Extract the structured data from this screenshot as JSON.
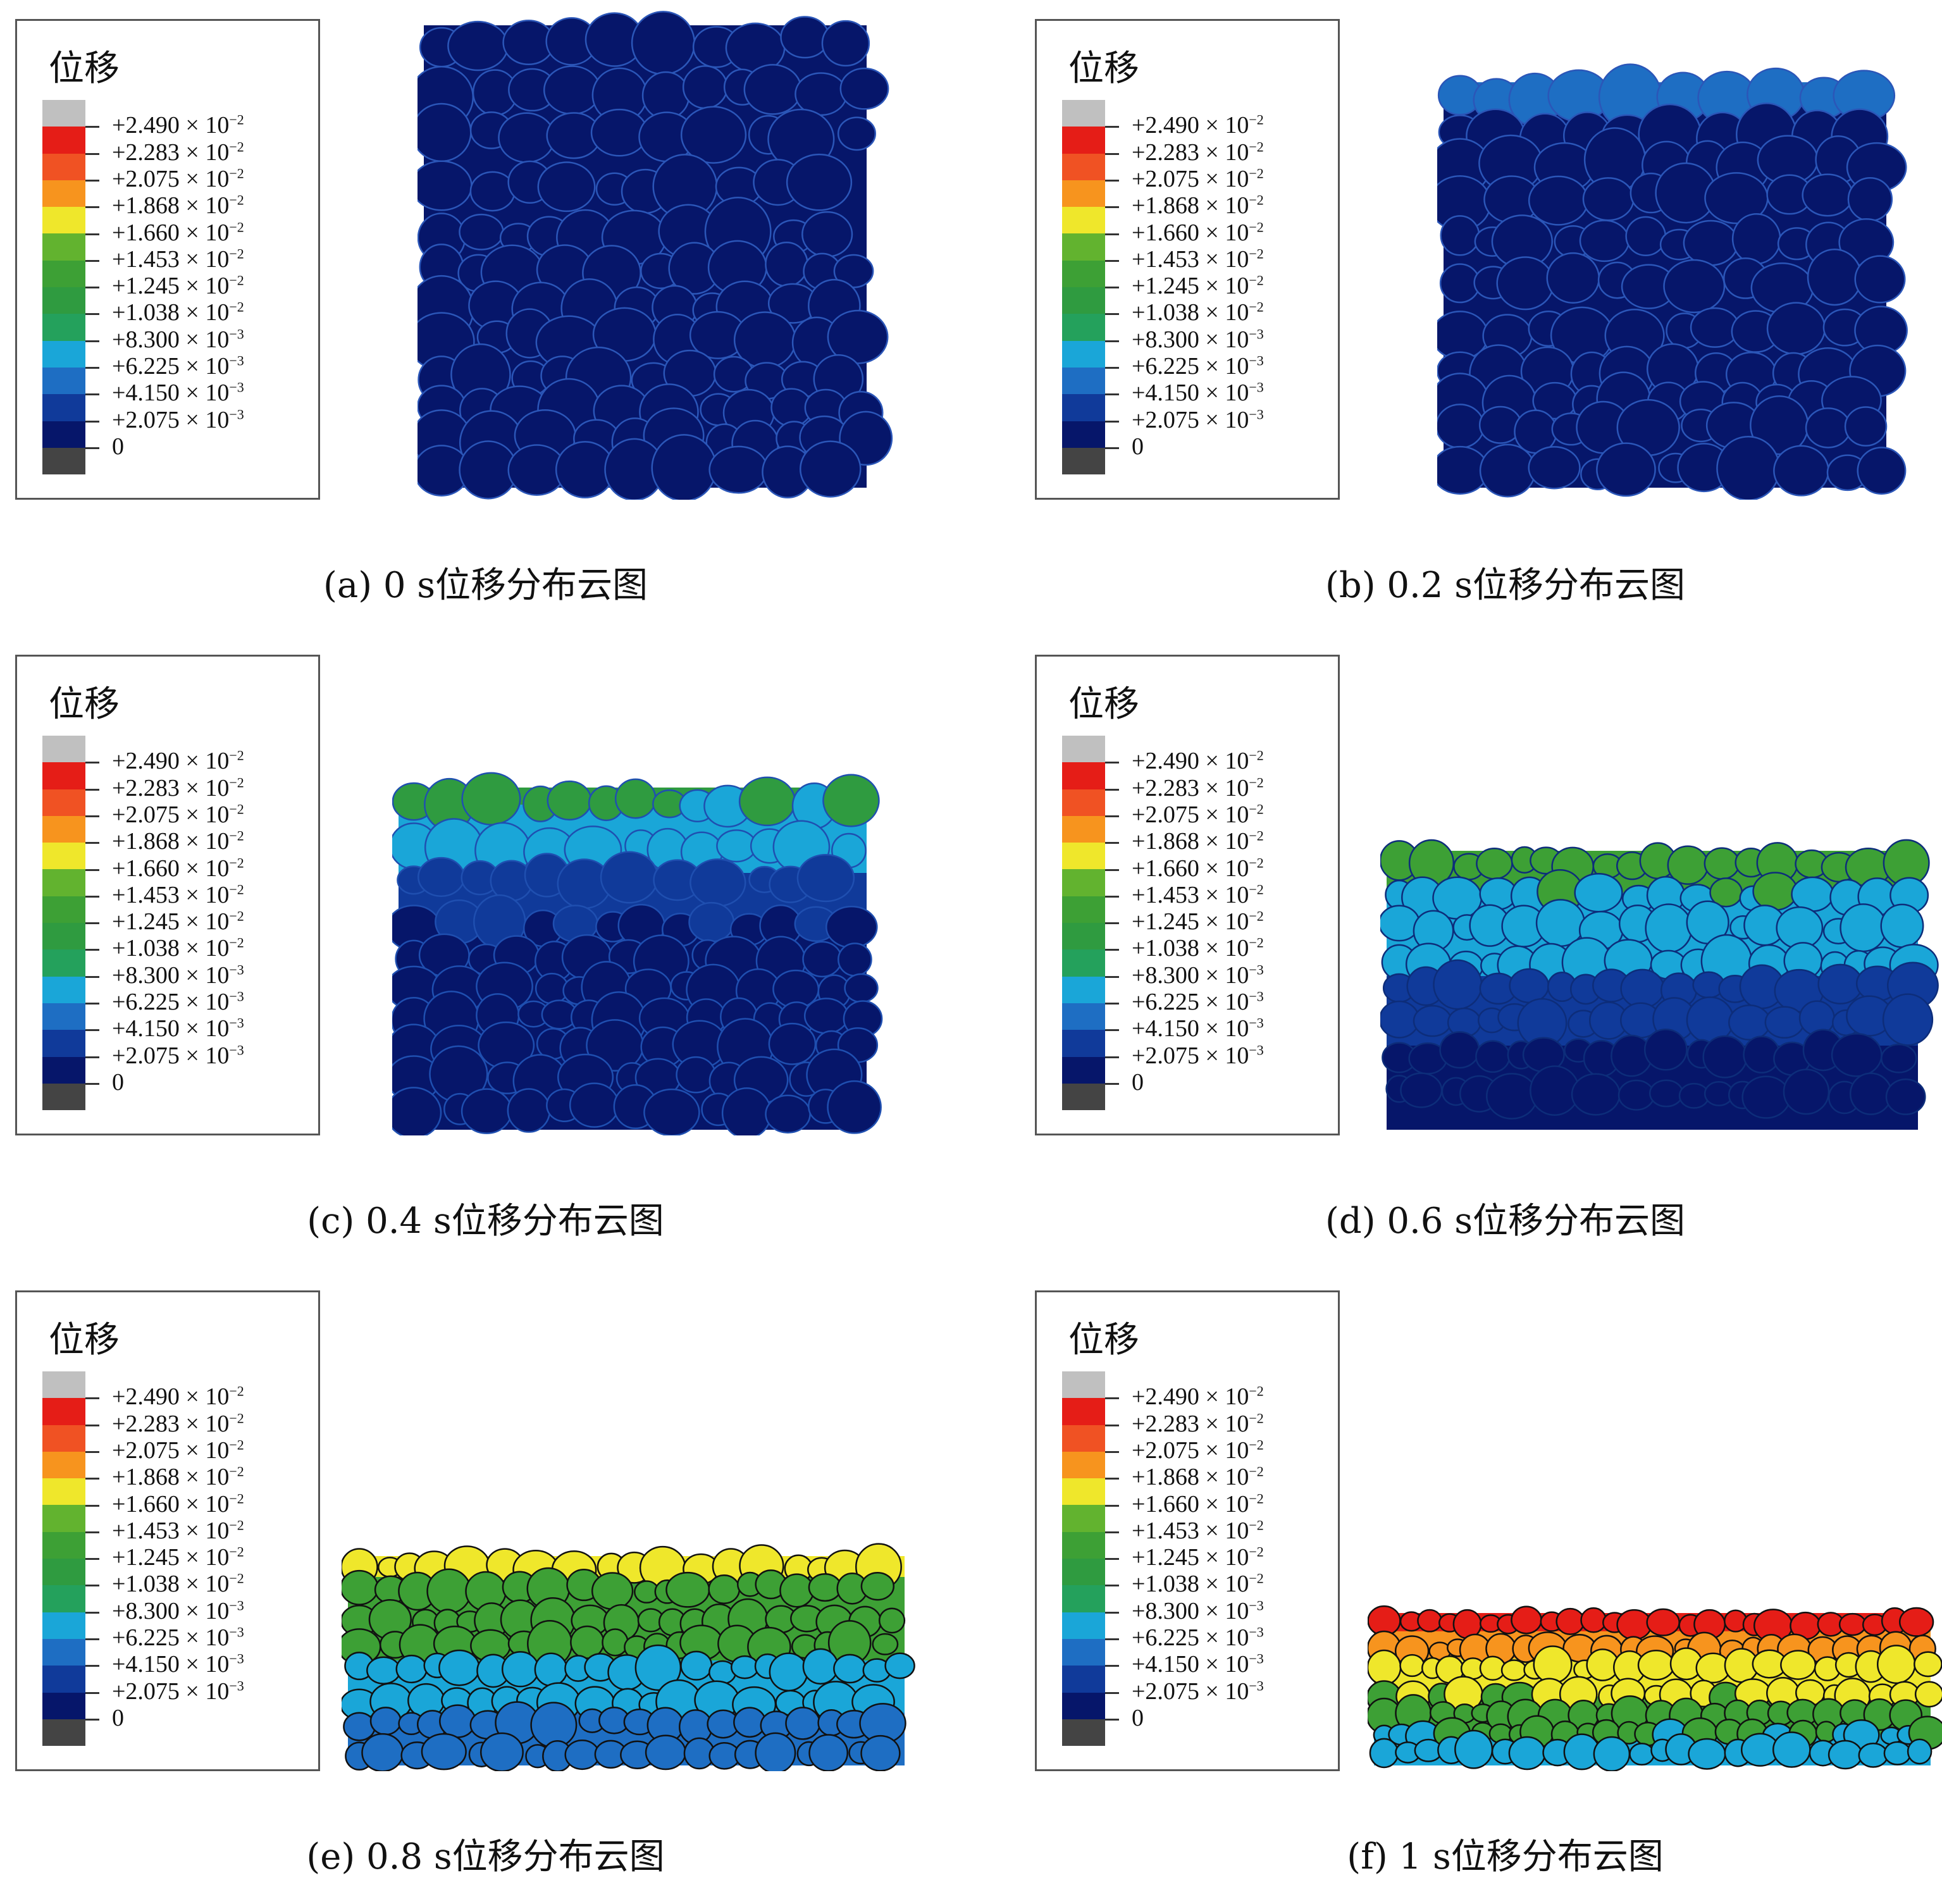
{
  "legend": {
    "title": "位移",
    "colors": [
      "#c0c0c0",
      "#e51d17",
      "#f05223",
      "#f7941e",
      "#efe72b",
      "#62b32f",
      "#3da035",
      "#2f9b40",
      "#24a15c",
      "#1aa6d8",
      "#1e6ec3",
      "#103a9a",
      "#06166a",
      "#444444"
    ],
    "labels": [
      {
        "mant": "+2.490 × 10",
        "exp": "−2"
      },
      {
        "mant": "+2.283 × 10",
        "exp": "−2"
      },
      {
        "mant": "+2.075 × 10",
        "exp": "−2"
      },
      {
        "mant": "+1.868 × 10",
        "exp": "−2"
      },
      {
        "mant": "+1.660 × 10",
        "exp": "−2"
      },
      {
        "mant": "+1.453 × 10",
        "exp": "−2"
      },
      {
        "mant": "+1.245 × 10",
        "exp": "−2"
      },
      {
        "mant": "+1.038 × 10",
        "exp": "−2"
      },
      {
        "mant": "+8.300 × 10",
        "exp": "−3"
      },
      {
        "mant": "+6.225 × 10",
        "exp": "−3"
      },
      {
        "mant": "+4.150 × 10",
        "exp": "−3"
      },
      {
        "mant": "+2.075 × 10",
        "exp": "−3"
      },
      {
        "mant": "0",
        "exp": ""
      }
    ]
  },
  "panels": [
    {
      "id": "a",
      "caption": "(a) 0 s位移分布云图"
    },
    {
      "id": "b",
      "caption": "(b) 0.2 s位移分布云图"
    },
    {
      "id": "c",
      "caption": "(c) 0.4 s位移分布云图"
    },
    {
      "id": "d",
      "caption": "(d) 0.6 s位移分布云图"
    },
    {
      "id": "e",
      "caption": "(e) 0.8 s位移分布云图"
    },
    {
      "id": "f",
      "caption": "(f) 1 s位移分布云图"
    }
  ]
}
